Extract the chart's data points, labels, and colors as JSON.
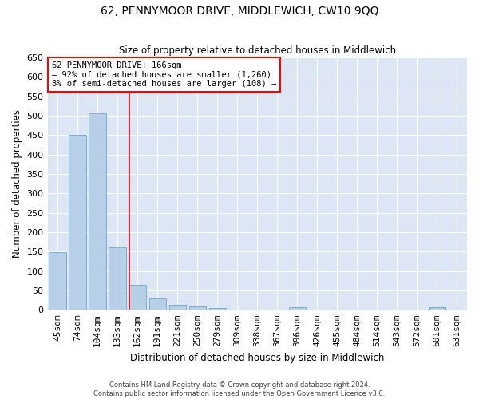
{
  "title": "62, PENNYMOOR DRIVE, MIDDLEWICH, CW10 9QQ",
  "subtitle": "Size of property relative to detached houses in Middlewich",
  "xlabel": "Distribution of detached houses by size in Middlewich",
  "ylabel": "Number of detached properties",
  "bar_color": "#b8cfe8",
  "bar_edge_color": "#7aadd4",
  "background_color": "#dce6f5",
  "fig_background": "#ffffff",
  "grid_color": "#ffffff",
  "categories": [
    "45sqm",
    "74sqm",
    "104sqm",
    "133sqm",
    "162sqm",
    "191sqm",
    "221sqm",
    "250sqm",
    "279sqm",
    "309sqm",
    "338sqm",
    "367sqm",
    "396sqm",
    "426sqm",
    "455sqm",
    "484sqm",
    "514sqm",
    "543sqm",
    "572sqm",
    "601sqm",
    "631sqm"
  ],
  "values": [
    148,
    450,
    507,
    160,
    65,
    30,
    13,
    9,
    5,
    0,
    0,
    0,
    6,
    0,
    0,
    0,
    0,
    0,
    0,
    6,
    0
  ],
  "ylim": [
    0,
    650
  ],
  "yticks": [
    0,
    50,
    100,
    150,
    200,
    250,
    300,
    350,
    400,
    450,
    500,
    550,
    600,
    650
  ],
  "vline_pos": 3.6,
  "annotation_title": "62 PENNYMOOR DRIVE: 166sqm",
  "annotation_line1": "← 92% of detached houses are smaller (1,260)",
  "annotation_line2": "8% of semi-detached houses are larger (108) →",
  "footer_line1": "Contains HM Land Registry data © Crown copyright and database right 2024.",
  "footer_line2": "Contains public sector information licensed under the Open Government Licence v3.0."
}
